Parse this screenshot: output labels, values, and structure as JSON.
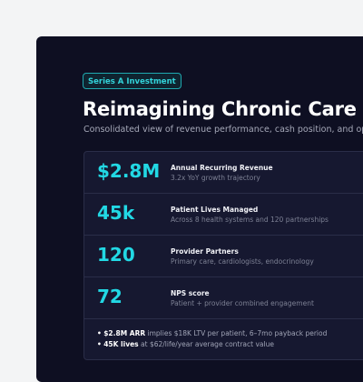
{
  "badge": "Series A Investment",
  "title": "Reimagining Chronic Care Ma",
  "subtitle": "Consolidated view of revenue performance, cash position, and operati",
  "metrics": [
    {
      "value": "$2.8M",
      "label": "Annual Recurring Revenue",
      "description": "3.2x YoY growth trajectory"
    },
    {
      "value": "45k",
      "label": "Patient Lives Managed",
      "description": "Across 8 health systems and 120 partnerships"
    },
    {
      "value": "120",
      "label": "Provider Partners",
      "description": "Primary care, cardiologists, endocrinology"
    },
    {
      "value": "72",
      "label": "NPS score",
      "description": "Patient + provider combined engagement"
    }
  ],
  "notes": [
    {
      "bullet": "•",
      "bold": "$2.8M ARR",
      "text": " implies $18K LTV per patient, 6–7mo payback period"
    },
    {
      "bullet": "•",
      "bold": "45K lives",
      "text": " at $62/life/year average contract value"
    }
  ],
  "colors": {
    "background": "#f3f4f5",
    "card": "#0e0f22",
    "accent": "#22d8e4",
    "panel": "#161830"
  }
}
